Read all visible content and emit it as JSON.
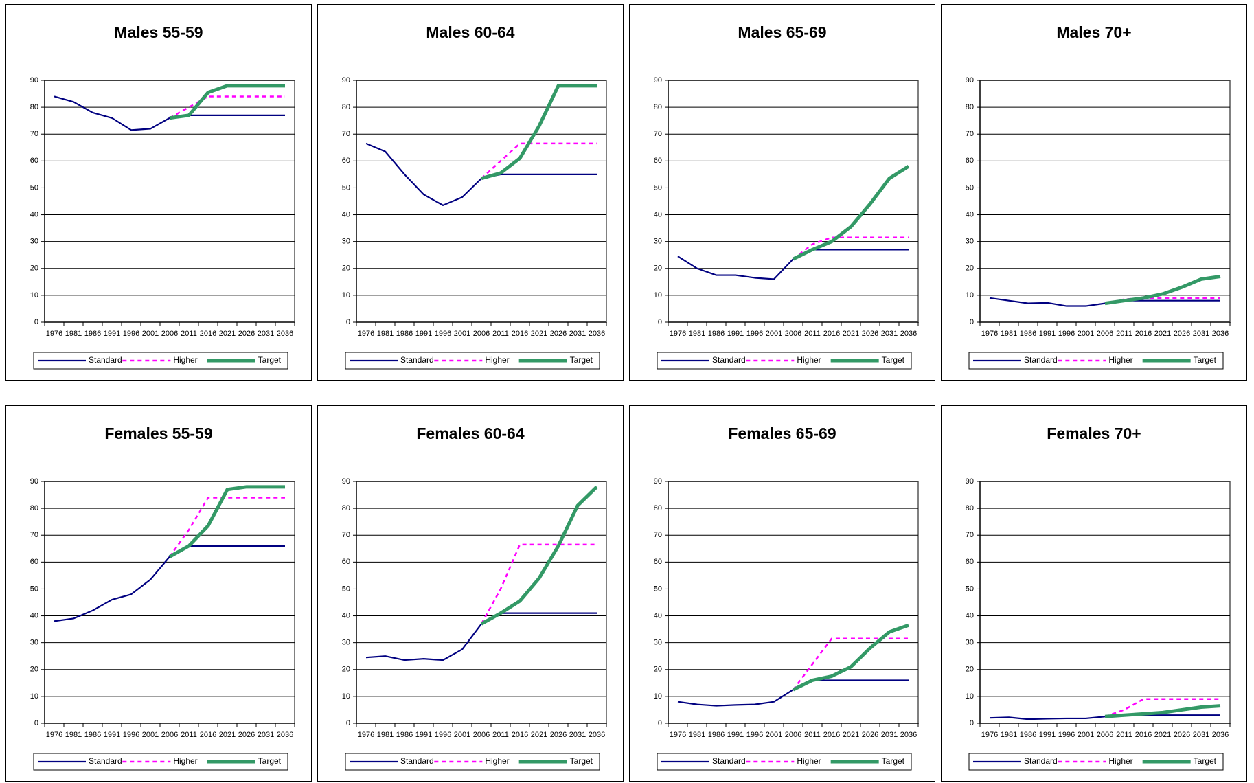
{
  "chart_data": [
    {
      "type": "line",
      "title": "Males 55-59",
      "categories": [
        "1976",
        "1981",
        "1986",
        "1991",
        "1996",
        "2001",
        "2006",
        "2011",
        "2016",
        "2021",
        "2026",
        "2031",
        "2036"
      ],
      "series": [
        {
          "name": "Standard",
          "color": "#000080",
          "dash": false,
          "values": [
            84,
            82,
            78,
            76,
            71.5,
            72,
            76,
            77,
            77,
            77,
            77,
            77,
            77
          ]
        },
        {
          "name": "Higher",
          "color": "#ff00ff",
          "dash": true,
          "values": [
            null,
            null,
            null,
            null,
            null,
            null,
            76,
            80,
            84,
            84,
            84,
            84,
            84
          ]
        },
        {
          "name": "Target",
          "color": "#339966",
          "dash": false,
          "values": [
            null,
            null,
            null,
            null,
            null,
            null,
            76,
            77,
            85.5,
            88,
            88,
            88,
            88
          ]
        }
      ],
      "ylim": [
        0,
        90
      ],
      "yticks": [
        0,
        10,
        20,
        30,
        40,
        50,
        60,
        70,
        80,
        90
      ],
      "grid": true
    },
    {
      "type": "line",
      "title": "Males 60-64",
      "categories": [
        "1976",
        "1981",
        "1986",
        "1991",
        "1996",
        "2001",
        "2006",
        "2011",
        "2016",
        "2021",
        "2026",
        "2031",
        "2036"
      ],
      "series": [
        {
          "name": "Standard",
          "color": "#000080",
          "dash": false,
          "values": [
            66.5,
            63.5,
            55,
            47.5,
            43.5,
            46.5,
            53.5,
            55,
            55,
            55,
            55,
            55,
            55
          ]
        },
        {
          "name": "Higher",
          "color": "#ff00ff",
          "dash": true,
          "values": [
            null,
            null,
            null,
            null,
            null,
            null,
            53.5,
            60,
            66.5,
            66.5,
            66.5,
            66.5,
            66.5
          ]
        },
        {
          "name": "Target",
          "color": "#339966",
          "dash": false,
          "values": [
            null,
            null,
            null,
            null,
            null,
            null,
            53.5,
            55.5,
            61,
            73,
            88,
            88,
            88
          ]
        }
      ],
      "ylim": [
        0,
        90
      ],
      "yticks": [
        0,
        10,
        20,
        30,
        40,
        50,
        60,
        70,
        80,
        90
      ],
      "grid": true
    },
    {
      "type": "line",
      "title": "Males 65-69",
      "categories": [
        "1976",
        "1981",
        "1986",
        "1991",
        "1996",
        "2001",
        "2006",
        "2011",
        "2016",
        "2021",
        "2026",
        "2031",
        "2036"
      ],
      "series": [
        {
          "name": "Standard",
          "color": "#000080",
          "dash": false,
          "values": [
            24.5,
            20,
            17.5,
            17.5,
            16.5,
            16,
            23.5,
            27,
            27,
            27,
            27,
            27,
            27
          ]
        },
        {
          "name": "Higher",
          "color": "#ff00ff",
          "dash": true,
          "values": [
            null,
            null,
            null,
            null,
            null,
            null,
            23.5,
            29,
            31.5,
            31.5,
            31.5,
            31.5,
            31.5
          ]
        },
        {
          "name": "Target",
          "color": "#339966",
          "dash": false,
          "values": [
            null,
            null,
            null,
            null,
            null,
            null,
            23.5,
            27,
            30,
            35.5,
            44,
            53.5,
            58
          ]
        }
      ],
      "ylim": [
        0,
        90
      ],
      "yticks": [
        0,
        10,
        20,
        30,
        40,
        50,
        60,
        70,
        80,
        90
      ],
      "grid": true
    },
    {
      "type": "line",
      "title": "Males 70+",
      "categories": [
        "1976",
        "1981",
        "1986",
        "1991",
        "1996",
        "2001",
        "2006",
        "2011",
        "2016",
        "2021",
        "2026",
        "2031",
        "2036"
      ],
      "series": [
        {
          "name": "Standard",
          "color": "#000080",
          "dash": false,
          "values": [
            9,
            8,
            7,
            7.2,
            6,
            6,
            7,
            8,
            8,
            8,
            8,
            8,
            8
          ]
        },
        {
          "name": "Higher",
          "color": "#ff00ff",
          "dash": true,
          "values": [
            null,
            null,
            null,
            null,
            null,
            null,
            7,
            8.5,
            9,
            9,
            9,
            9,
            9
          ]
        },
        {
          "name": "Target",
          "color": "#339966",
          "dash": false,
          "values": [
            null,
            null,
            null,
            null,
            null,
            null,
            7,
            8,
            9,
            10.5,
            13,
            16,
            17
          ]
        }
      ],
      "ylim": [
        0,
        90
      ],
      "yticks": [
        0,
        10,
        20,
        30,
        40,
        50,
        60,
        70,
        80,
        90
      ],
      "grid": true
    },
    {
      "type": "line",
      "title": "Females 55-59",
      "categories": [
        "1976",
        "1981",
        "1986",
        "1991",
        "1996",
        "2001",
        "2006",
        "2011",
        "2016",
        "2021",
        "2026",
        "2031",
        "2036"
      ],
      "series": [
        {
          "name": "Standard",
          "color": "#000080",
          "dash": false,
          "values": [
            38,
            39,
            42,
            46,
            48,
            53.5,
            62,
            66,
            66,
            66,
            66,
            66,
            66
          ]
        },
        {
          "name": "Higher",
          "color": "#ff00ff",
          "dash": true,
          "values": [
            null,
            null,
            null,
            null,
            null,
            null,
            62,
            72,
            84,
            84,
            84,
            84,
            84
          ]
        },
        {
          "name": "Target",
          "color": "#339966",
          "dash": false,
          "values": [
            null,
            null,
            null,
            null,
            null,
            null,
            62,
            66,
            73.5,
            87,
            88,
            88,
            88
          ]
        }
      ],
      "ylim": [
        0,
        90
      ],
      "yticks": [
        0,
        10,
        20,
        30,
        40,
        50,
        60,
        70,
        80,
        90
      ],
      "grid": true
    },
    {
      "type": "line",
      "title": "Females 60-64",
      "categories": [
        "1976",
        "1981",
        "1986",
        "1991",
        "1996",
        "2001",
        "2006",
        "2011",
        "2016",
        "2021",
        "2026",
        "2031",
        "2036"
      ],
      "series": [
        {
          "name": "Standard",
          "color": "#000080",
          "dash": false,
          "values": [
            24.5,
            25,
            23.5,
            24,
            23.5,
            27.5,
            37,
            41,
            41,
            41,
            41,
            41,
            41
          ]
        },
        {
          "name": "Higher",
          "color": "#ff00ff",
          "dash": true,
          "values": [
            null,
            null,
            null,
            null,
            null,
            null,
            37,
            50,
            66.5,
            66.5,
            66.5,
            66.5,
            66.5
          ]
        },
        {
          "name": "Target",
          "color": "#339966",
          "dash": false,
          "values": [
            null,
            null,
            null,
            null,
            null,
            null,
            37,
            41,
            45.5,
            54,
            66,
            81,
            88
          ]
        }
      ],
      "ylim": [
        0,
        90
      ],
      "yticks": [
        0,
        10,
        20,
        30,
        40,
        50,
        60,
        70,
        80,
        90
      ],
      "grid": true
    },
    {
      "type": "line",
      "title": "Females 65-69",
      "categories": [
        "1976",
        "1981",
        "1986",
        "1991",
        "1996",
        "2001",
        "2006",
        "2011",
        "2016",
        "2021",
        "2026",
        "2031",
        "2036"
      ],
      "series": [
        {
          "name": "Standard",
          "color": "#000080",
          "dash": false,
          "values": [
            8,
            7,
            6.5,
            6.8,
            7,
            8,
            12.5,
            16,
            16,
            16,
            16,
            16,
            16
          ]
        },
        {
          "name": "Higher",
          "color": "#ff00ff",
          "dash": true,
          "values": [
            null,
            null,
            null,
            null,
            null,
            null,
            12.5,
            22,
            31.5,
            31.5,
            31.5,
            31.5,
            31.5
          ]
        },
        {
          "name": "Target",
          "color": "#339966",
          "dash": false,
          "values": [
            null,
            null,
            null,
            null,
            null,
            null,
            12.5,
            16,
            17.5,
            21,
            28,
            34,
            36.5
          ]
        }
      ],
      "ylim": [
        0,
        90
      ],
      "yticks": [
        0,
        10,
        20,
        30,
        40,
        50,
        60,
        70,
        80,
        90
      ],
      "grid": true
    },
    {
      "type": "line",
      "title": "Females 70+",
      "categories": [
        "1976",
        "1981",
        "1986",
        "1991",
        "1996",
        "2001",
        "2006",
        "2011",
        "2016",
        "2021",
        "2026",
        "2031",
        "2036"
      ],
      "series": [
        {
          "name": "Standard",
          "color": "#000080",
          "dash": false,
          "values": [
            2,
            2.2,
            1.5,
            1.7,
            1.8,
            1.8,
            2.5,
            3,
            3,
            3,
            3,
            3,
            3
          ]
        },
        {
          "name": "Higher",
          "color": "#ff00ff",
          "dash": true,
          "values": [
            null,
            null,
            null,
            null,
            null,
            null,
            2.5,
            5,
            9,
            9,
            9,
            9,
            9
          ]
        },
        {
          "name": "Target",
          "color": "#339966",
          "dash": false,
          "values": [
            null,
            null,
            null,
            null,
            null,
            null,
            2.5,
            3,
            3.5,
            4,
            5,
            6,
            6.5
          ]
        }
      ],
      "ylim": [
        0,
        90
      ],
      "yticks": [
        0,
        10,
        20,
        30,
        40,
        50,
        60,
        70,
        80,
        90
      ],
      "grid": true
    }
  ]
}
